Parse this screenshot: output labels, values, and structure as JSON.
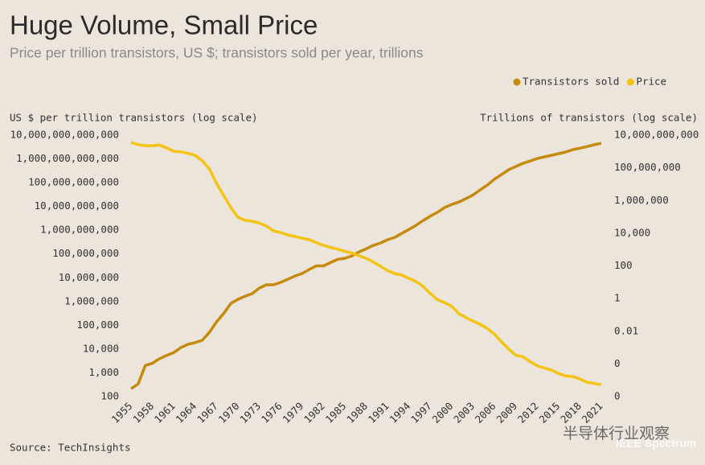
{
  "chart_data": {
    "type": "line",
    "title": "Huge Volume, Small Price",
    "subtitle": "Price per trillion transistors, US $; transistors sold per year, trillions",
    "y_label": "US $ per trillion transistors (log scale)",
    "y2_label": "Trillions of transistors (log scale)",
    "source": "Source: TechInsights",
    "watermark": [
      "半导体行业观察",
      "IEEE Spectrum"
    ],
    "log_scale": true,
    "grid": false,
    "legend_position": "top-right",
    "x": [
      1955,
      1956,
      1957,
      1958,
      1959,
      1960,
      1961,
      1962,
      1963,
      1964,
      1965,
      1966,
      1967,
      1968,
      1969,
      1970,
      1971,
      1972,
      1973,
      1974,
      1975,
      1976,
      1977,
      1978,
      1979,
      1980,
      1981,
      1982,
      1983,
      1984,
      1985,
      1986,
      1987,
      1988,
      1989,
      1990,
      1991,
      1992,
      1993,
      1994,
      1995,
      1996,
      1997,
      1998,
      1999,
      2000,
      2001,
      2002,
      2003,
      2004,
      2005,
      2006,
      2007,
      2008,
      2009,
      2010,
      2011,
      2012,
      2013,
      2014,
      2015,
      2016,
      2017,
      2018,
      2019,
      2020,
      2021
    ],
    "xlim": [
      1955,
      2021
    ],
    "xticks": [
      1955,
      1958,
      1961,
      1964,
      1967,
      1970,
      1973,
      1976,
      1979,
      1982,
      1985,
      1988,
      1991,
      1994,
      1997,
      2000,
      2003,
      2006,
      2009,
      2012,
      2015,
      2018,
      2021
    ],
    "ylim": [
      100,
      10000000000000
    ],
    "yticks": [
      100,
      {
        "value": 1000,
        "label": "1,000"
      },
      {
        "value": 10000,
        "label": "10,000"
      },
      {
        "value": 100000,
        "label": "100,000"
      },
      {
        "value": 1000000,
        "label": "1,000,000"
      },
      {
        "value": 10000000,
        "label": "10,000,000"
      },
      {
        "value": 100000000,
        "label": "100,000,000"
      },
      {
        "value": 1000000000,
        "label": "1,000,000,000"
      },
      {
        "value": 10000000000,
        "label": "10,000,000,000"
      },
      {
        "value": 100000000000,
        "label": "100,000,000,000"
      },
      {
        "value": 1000000000000,
        "label": "1,000,000,000,000"
      },
      {
        "value": 10000000000000,
        "label": "10,000,000,000,000"
      }
    ],
    "y2lim": [
      1e-06,
      10000000000
    ],
    "y2ticks": [
      {
        "value": 1e-06,
        "label": "0"
      },
      {
        "value": 0.0001,
        "label": "0"
      },
      0.01,
      1,
      100,
      {
        "value": 10000,
        "label": "10,000"
      },
      {
        "value": 1000000,
        "label": "1,000,000"
      },
      {
        "value": 100000000,
        "label": "100,000,000"
      },
      {
        "value": 10000000000,
        "label": "10,000,000,000"
      }
    ],
    "series": [
      {
        "name": "Transistors sold",
        "color": "#c68a0e",
        "axis": "y2",
        "values": [
          3e-06,
          6e-06,
          8e-05,
          0.00011,
          0.00021,
          0.00033,
          0.0005,
          0.001,
          0.0016,
          0.002,
          0.0028,
          0.0086,
          0.038,
          0.12,
          0.5,
          0.9,
          1.4,
          2,
          4.4,
          7,
          7,
          9.8,
          15,
          24,
          34,
          60,
          100,
          100,
          160,
          250,
          290,
          410,
          720,
          1100,
          1800,
          2500,
          4000,
          5500,
          9800,
          17000,
          30000,
          60000,
          110000,
          190000,
          370000,
          580000,
          800000,
          1300000,
          2200000,
          4500000,
          8800000,
          20000000,
          39000000,
          76000000,
          120000000,
          190000000,
          260000000,
          370000000,
          470000000,
          590000000,
          740000000,
          930000000,
          1300000000,
          1600000000,
          2000000000,
          2600000000,
          3200000000
        ]
      },
      {
        "name": "Price",
        "color": "#f5c311",
        "values": [
          5000000000000,
          4000000000000,
          3600000000000,
          3600000000000,
          3900000000000,
          2900000000000,
          2100000000000,
          2000000000000,
          1700000000000,
          1400000000000,
          830000000000,
          380000000000,
          93000000000,
          29000000000,
          9000000000,
          3500000000,
          2600000000,
          2400000000,
          2000000000,
          1500000000,
          940000000,
          800000000,
          630000000,
          550000000,
          460000000,
          400000000,
          300000000,
          230000000,
          190000000,
          160000000,
          130000000,
          110000000,
          85000000,
          66000000,
          46000000,
          31000000,
          20000000,
          15000000,
          13000000,
          9400000,
          7000000,
          4300000,
          2200000,
          1200000,
          900000,
          630000,
          310000,
          210000,
          150000,
          110000,
          73000,
          43000,
          20000,
          10000,
          5500,
          4800,
          3000,
          2000,
          1600,
          1300,
          940,
          740,
          700,
          550,
          400,
          360,
          320
        ]
      }
    ]
  }
}
